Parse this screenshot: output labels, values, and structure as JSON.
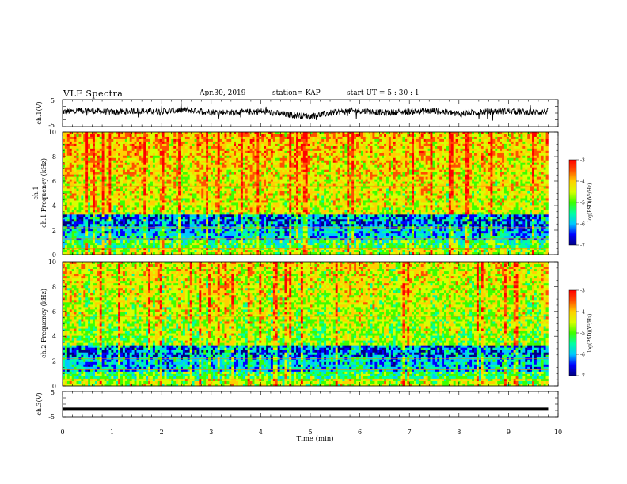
{
  "header": {
    "title": "VLF Spectra",
    "date": "Apr.30, 2019",
    "station": "station= KAP",
    "start": "start  UT =   5  : 30 : 1"
  },
  "chart_data": [
    {
      "type": "line",
      "panel": "ch1-waveform",
      "ylabel": "ch.1(V)",
      "ylim": [
        -5,
        5
      ],
      "yticks": [
        "5",
        "-5"
      ],
      "xlim": [
        0,
        10
      ],
      "series": [
        {
          "color": "#000000",
          "description_points_min": [
            0,
            0.5,
            1,
            1.5,
            2,
            2.5,
            3,
            3.5,
            4,
            4.5,
            5,
            5.5,
            6,
            6.5,
            7,
            7.5,
            8,
            8.5,
            9,
            9.5,
            9.8
          ],
          "values": [
            0.5,
            1.0,
            0.3,
            0.8,
            0.6,
            1.2,
            0.4,
            0.2,
            0.7,
            -0.5,
            -1.2,
            0.3,
            0.9,
            0.1,
            0.6,
            0.8,
            -0.2,
            0.5,
            0.7,
            0.3,
            0.6
          ]
        }
      ]
    },
    {
      "type": "heatmap",
      "panel": "ch1-spectrogram",
      "ylabel": "ch.1 Frequency (kHz)",
      "ylim": [
        0,
        10
      ],
      "yticks": [
        "0",
        "2",
        "4",
        "6",
        "8",
        "10"
      ],
      "xlim": [
        0,
        10
      ],
      "colorbar": {
        "label": "log(PSD)(V²/Hz)",
        "range": [
          -7,
          -3
        ],
        "ticks": [
          "-3",
          "-4",
          "-5",
          "-6",
          "-7"
        ]
      }
    },
    {
      "type": "heatmap",
      "panel": "ch2-spectrogram",
      "ylabel": "ch.2 Frequency (kHz)",
      "ylim": [
        0,
        10
      ],
      "yticks": [
        "0",
        "2",
        "4",
        "6",
        "8",
        "10"
      ],
      "xlim": [
        0,
        10
      ],
      "colorbar": {
        "label": "log(PSD)(V²/Hz)",
        "range": [
          -7,
          -3
        ],
        "ticks": [
          "-3",
          "-4",
          "-5",
          "-6",
          "-7"
        ]
      }
    },
    {
      "type": "line",
      "panel": "ch3-waveform",
      "ylabel": "ch.3(V)",
      "ylim": [
        -5,
        5
      ],
      "yticks": [
        "5",
        "-5"
      ],
      "xlim": [
        0,
        10
      ],
      "series": [
        {
          "color": "#000000",
          "x": [
            0,
            9.8
          ],
          "values": [
            -2,
            -2
          ]
        }
      ]
    }
  ],
  "xaxis": {
    "label": "Time (min)",
    "ticks": [
      "0",
      "1",
      "2",
      "3",
      "4",
      "5",
      "6",
      "7",
      "8",
      "9",
      "10"
    ]
  },
  "colors": {
    "colormap": [
      "#000080",
      "#0000ff",
      "#00c8ff",
      "#00ffa0",
      "#3cff00",
      "#d7ff00",
      "#ffd000",
      "#ff5000",
      "#ff0000",
      "#ffffff"
    ]
  }
}
